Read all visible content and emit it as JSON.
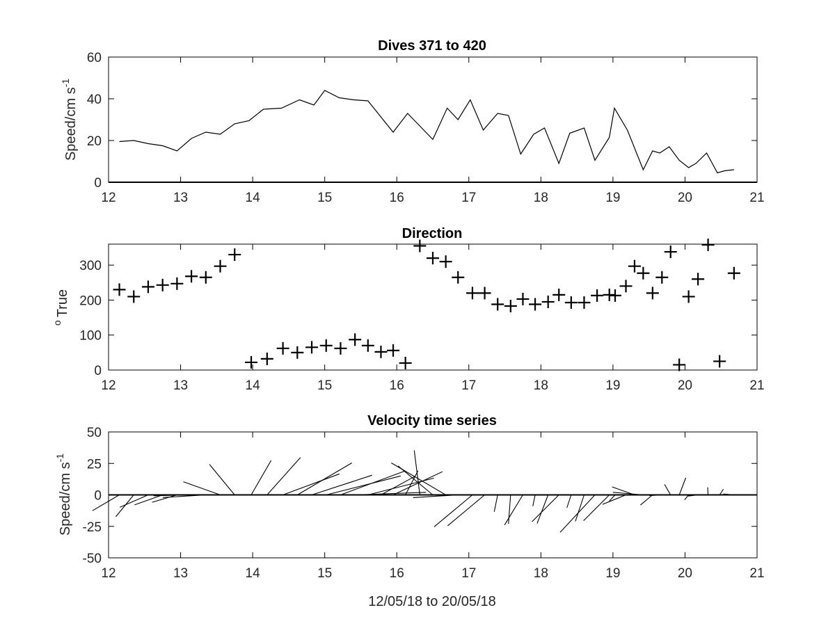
{
  "chart_data": [
    {
      "type": "line",
      "title": "Dives 371 to 420",
      "ylabel_main": "Speed/cm s",
      "ylabel_sup": "-1",
      "xlabel": "",
      "xlim": [
        12,
        21
      ],
      "ylim": [
        0,
        60
      ],
      "xticks": [
        "12",
        "13",
        "14",
        "15",
        "16",
        "17",
        "18",
        "19",
        "20",
        "21"
      ],
      "yticks": [
        "0",
        "20",
        "40",
        "60"
      ],
      "series": [
        {
          "x": [
            12.15,
            12.35,
            12.55,
            12.75,
            12.95,
            13.15,
            13.35,
            13.55,
            13.75,
            13.95,
            14.15,
            14.4,
            14.65,
            14.85,
            15.0,
            15.2,
            15.4,
            15.6,
            15.95,
            16.15,
            16.5,
            16.7,
            16.85,
            17.02,
            17.2,
            17.4,
            17.55,
            17.72,
            17.9,
            18.05,
            18.25,
            18.4,
            18.6,
            18.75,
            18.95,
            19.02,
            19.2,
            19.42,
            19.55,
            19.65,
            19.78,
            19.92,
            20.05,
            20.15,
            20.3,
            20.45,
            20.55,
            20.68
          ],
          "y": [
            19.5,
            20,
            18.5,
            17.5,
            15,
            21,
            24,
            23,
            28,
            29.5,
            35,
            35.5,
            39.5,
            37,
            44,
            40.5,
            39.5,
            39,
            24,
            33,
            20.5,
            35.5,
            30,
            39.5,
            25,
            33,
            32,
            13.5,
            23,
            26,
            9,
            23.5,
            26,
            10.5,
            21.5,
            35.5,
            25,
            6,
            15,
            14,
            17,
            10.5,
            7,
            9,
            14,
            4.5,
            5.5,
            6
          ]
        }
      ]
    },
    {
      "type": "scatter",
      "title": "Direction",
      "ylabel_main": "True",
      "ylabel_sup": "o",
      "xlabel": "",
      "xlim": [
        12,
        21
      ],
      "ylim": [
        0,
        360
      ],
      "xticks": [
        "12",
        "13",
        "14",
        "15",
        "16",
        "17",
        "18",
        "19",
        "20",
        "21"
      ],
      "yticks": [
        "0",
        "100",
        "200",
        "300"
      ],
      "series": [
        {
          "x": [
            12.15,
            12.35,
            12.55,
            12.75,
            12.95,
            13.15,
            13.35,
            13.55,
            13.75,
            13.98,
            14.2,
            14.42,
            14.62,
            14.82,
            15.02,
            15.22,
            15.42,
            15.6,
            15.78,
            15.95,
            16.12,
            16.32,
            16.5,
            16.68,
            16.85,
            17.05,
            17.22,
            17.4,
            17.58,
            17.75,
            17.92,
            18.1,
            18.25,
            18.42,
            18.6,
            18.78,
            18.95,
            19.03,
            19.18,
            19.3,
            19.42,
            19.55,
            19.68,
            19.8,
            19.92,
            20.05,
            20.18,
            20.32,
            20.48,
            20.68
          ],
          "y": [
            230,
            210,
            238,
            243,
            247,
            268,
            265,
            297,
            330,
            22,
            32,
            62,
            50,
            65,
            70,
            62,
            87,
            70,
            52,
            56,
            20,
            355,
            320,
            310,
            265,
            220,
            220,
            188,
            183,
            203,
            188,
            195,
            215,
            193,
            193,
            213,
            215,
            213,
            240,
            297,
            277,
            220,
            265,
            338,
            15,
            210,
            260,
            358,
            25,
            277
          ]
        }
      ]
    },
    {
      "type": "stick",
      "title": "Velocity time series",
      "ylabel_main": "Speed/cm s",
      "ylabel_sup": "-1",
      "xlabel": "12/05/18 to 20/05/18",
      "xlim": [
        12,
        21
      ],
      "ylim": [
        -50,
        50
      ],
      "xticks": [
        "12",
        "13",
        "14",
        "15",
        "16",
        "17",
        "18",
        "19",
        "20",
        "21"
      ],
      "yticks": [
        "-50",
        "-25",
        "0",
        "25",
        "50"
      ],
      "series": [
        {
          "x": [
            12.15,
            12.35,
            12.55,
            12.75,
            12.95,
            13.15,
            13.35,
            13.55,
            13.75,
            13.98,
            14.2,
            14.42,
            14.62,
            14.82,
            15.02,
            15.22,
            15.42,
            15.6,
            15.78,
            15.95,
            16.12,
            16.32,
            16.5,
            16.68,
            16.85,
            17.05,
            17.22,
            17.4,
            17.58,
            17.75,
            17.92,
            18.1,
            18.25,
            18.42,
            18.6,
            18.75,
            18.95,
            19.03,
            19.18,
            19.3,
            19.42,
            19.55,
            19.68,
            19.8,
            19.92,
            20.05,
            20.18,
            20.32,
            20.48,
            20.68
          ],
          "speed": [
            19.5,
            20,
            18.5,
            17.5,
            15,
            21,
            24,
            23,
            28,
            29.5,
            35,
            35.5,
            39.5,
            37,
            44,
            40.5,
            39.5,
            39,
            24,
            33,
            20.5,
            35.5,
            30,
            39.5,
            25,
            33,
            32,
            13.5,
            23,
            26,
            9,
            23.5,
            26,
            10.5,
            21.5,
            35.5,
            25,
            6,
            15,
            14,
            17,
            10.5,
            7,
            9,
            14,
            4.5,
            5.5,
            6,
            5,
            6
          ],
          "direction": [
            230,
            210,
            238,
            243,
            247,
            268,
            265,
            297,
            330,
            22,
            32,
            62,
            50,
            65,
            70,
            62,
            87,
            70,
            52,
            56,
            20,
            355,
            320,
            310,
            265,
            220,
            220,
            188,
            183,
            203,
            188,
            195,
            215,
            193,
            193,
            213,
            215,
            213,
            240,
            297,
            277,
            220,
            265,
            338,
            15,
            210,
            260,
            358,
            25,
            277
          ]
        }
      ]
    }
  ]
}
